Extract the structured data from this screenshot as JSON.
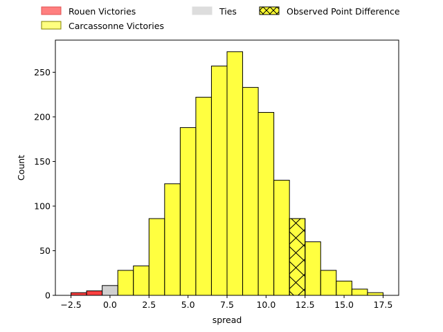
{
  "chart_data": {
    "type": "bar",
    "title": "",
    "xlabel": "spread",
    "ylabel": "Count",
    "xlim": [
      -3.5,
      18.5
    ],
    "ylim": [
      0,
      286
    ],
    "x_ticks": [
      -2.5,
      0.0,
      2.5,
      5.0,
      7.5,
      10.0,
      12.5,
      15.0,
      17.5
    ],
    "x_tick_labels": [
      "−2.5",
      "0.0",
      "2.5",
      "5.0",
      "7.5",
      "10.0",
      "12.5",
      "15.0",
      "17.5"
    ],
    "y_ticks": [
      0,
      50,
      100,
      150,
      200,
      250
    ],
    "y_tick_labels": [
      "0",
      "50",
      "100",
      "150",
      "200",
      "250"
    ],
    "grid": false,
    "legend_placement": "above the plot, upper-left",
    "bin_width": 1,
    "series": [
      {
        "name": "Rouen Victories",
        "color": "#ff0000",
        "bins": [
          {
            "x": -2,
            "count": 3
          },
          {
            "x": -1,
            "count": 5
          }
        ]
      },
      {
        "name": "Carcassonne Victories",
        "color": "#ffff00",
        "bins": [
          {
            "x": 1,
            "count": 28
          },
          {
            "x": 2,
            "count": 33
          },
          {
            "x": 3,
            "count": 86
          },
          {
            "x": 4,
            "count": 125
          },
          {
            "x": 5,
            "count": 188
          },
          {
            "x": 6,
            "count": 222
          },
          {
            "x": 7,
            "count": 257
          },
          {
            "x": 8,
            "count": 273
          },
          {
            "x": 9,
            "count": 233
          },
          {
            "x": 10,
            "count": 205
          },
          {
            "x": 11,
            "count": 129
          },
          {
            "x": 13,
            "count": 60
          },
          {
            "x": 14,
            "count": 28
          },
          {
            "x": 15,
            "count": 16
          },
          {
            "x": 16,
            "count": 7
          },
          {
            "x": 17,
            "count": 3
          }
        ]
      },
      {
        "name": "Ties",
        "color": "#c0c0c0",
        "bins": [
          {
            "x": 0,
            "count": 11
          }
        ]
      },
      {
        "name": "Observed Point Difference",
        "color": "#ffff00",
        "hatch": "x",
        "bins": [
          {
            "x": 12,
            "count": 86
          }
        ]
      }
    ],
    "legend": [
      {
        "label": "Rouen Victories",
        "color": "#ff7f7f",
        "edge": "#e05050",
        "hatch": false
      },
      {
        "label": "Ties",
        "color": "#dddddd",
        "edge": "#dddddd",
        "hatch": false
      },
      {
        "label": "Observed Point Difference",
        "color": "#ffff33",
        "edge": "#000000",
        "hatch": true
      },
      {
        "label": "Carcassonne Victories",
        "color": "#ffff80",
        "edge": "#808000",
        "hatch": false
      }
    ]
  }
}
